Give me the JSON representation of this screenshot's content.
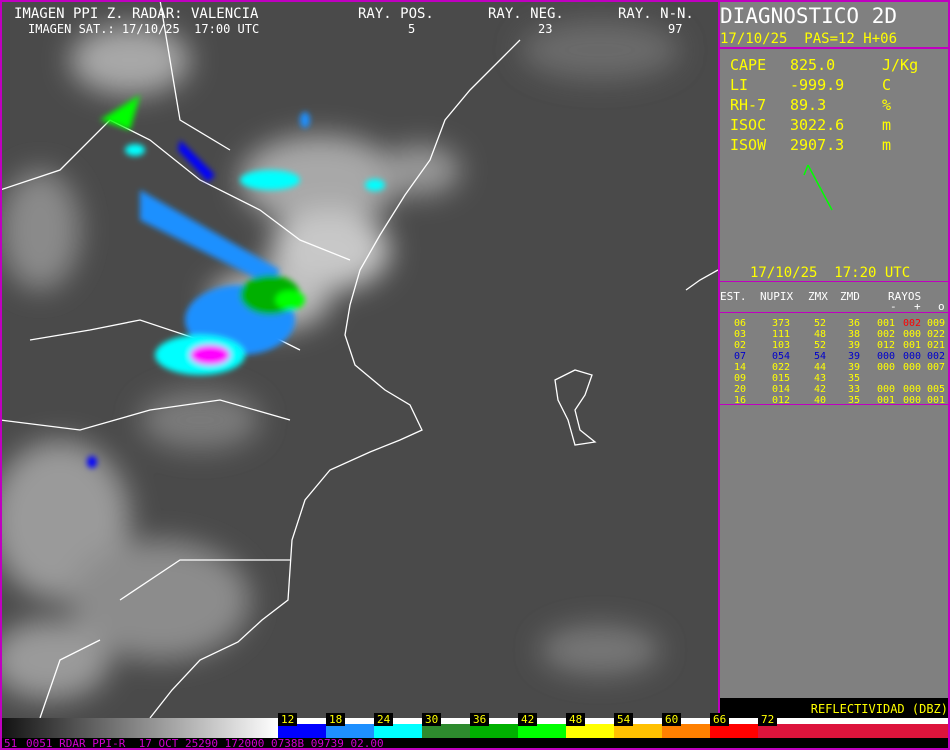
{
  "header": {
    "title": "IMAGEN PPI Z. RADAR: VALENCIA",
    "satellite": "IMAGEN SAT.: 17/10/25  17:00 UTC",
    "counters": [
      {
        "label": "RAY. POS.",
        "value": "5"
      },
      {
        "label": "RAY. NEG.",
        "value": "23"
      },
      {
        "label": "RAY. N-N.",
        "value": "97"
      }
    ]
  },
  "panel": {
    "title": "DIAGNOSTICO 2D",
    "run": "17/10/25  PAS=12 H+06",
    "indices": [
      {
        "name": "CAPE",
        "value": "825.0",
        "unit": "J/Kg"
      },
      {
        "name": "LI",
        "value": "-999.9",
        "unit": "C"
      },
      {
        "name": "RH-7",
        "value": "89.3",
        "unit": "%"
      },
      {
        "name": "ISOC",
        "value": "3022.6",
        "unit": "m"
      },
      {
        "name": "ISOW",
        "value": "2907.3",
        "unit": "m"
      }
    ],
    "time": "17/10/25  17:20 UTC",
    "table": {
      "headers": [
        "EST.",
        "NUPIX",
        "ZMX",
        "ZMD",
        "RAYOS"
      ],
      "rayos_signs": [
        "-",
        "+",
        "o"
      ],
      "rows": [
        [
          "06",
          "373",
          "52",
          "36",
          "001",
          "002",
          "009"
        ],
        [
          "03",
          "111",
          "48",
          "38",
          "002",
          "000",
          "022"
        ],
        [
          "02",
          "103",
          "52",
          "39",
          "012",
          "001",
          "021"
        ],
        [
          "07",
          "054",
          "54",
          "39",
          "000",
          "000",
          "002"
        ],
        [
          "14",
          "022",
          "44",
          "39",
          "000",
          "000",
          "007"
        ],
        [
          "09",
          "015",
          "43",
          "35"
        ],
        [
          "20",
          "014",
          "42",
          "33",
          "000",
          "000",
          "005"
        ],
        [
          "16",
          "012",
          "40",
          "35",
          "001",
          "000",
          "001"
        ]
      ]
    }
  },
  "legend": {
    "title": "REFLECTIVIDAD (DBZ)",
    "labels": [
      "12",
      "18",
      "24",
      "30",
      "36",
      "42",
      "48",
      "54",
      "60",
      "66",
      "72"
    ],
    "colors": [
      "#0000ff",
      "#1e90ff",
      "#00ffff",
      "#2e8b2e",
      "#00b000",
      "#00ff00",
      "#ffff00",
      "#ffc000",
      "#ff8000",
      "#ff0000",
      "#dc143c"
    ]
  },
  "footer": {
    "code": "51",
    "status": "0051 RDAR_PPI-R  17 OCT 25290 172000 0738B 09739 02.00"
  }
}
